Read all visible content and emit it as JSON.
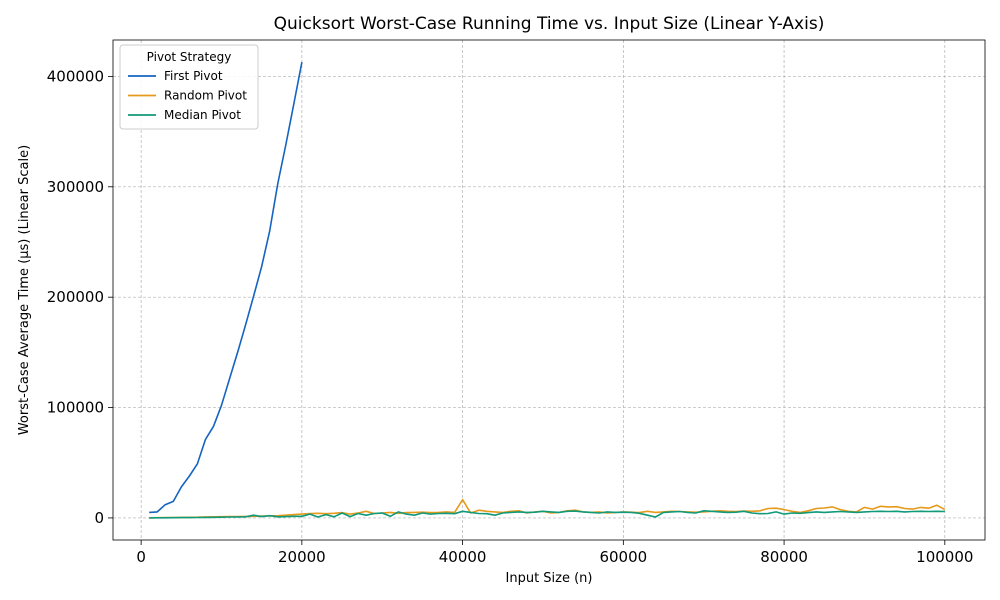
{
  "chart_data": {
    "type": "line",
    "title": "Quicksort Worst-Case Running Time vs. Input Size (Linear Y-Axis)",
    "xlabel": "Input Size (n)",
    "ylabel": "Worst-Case Average Time (μs) (Linear Scale)",
    "xlim": [
      -3500,
      105000
    ],
    "ylim": [
      -20000,
      433000
    ],
    "x_ticks": [
      0,
      20000,
      40000,
      60000,
      80000,
      100000
    ],
    "x_tick_labels": [
      "0",
      "20000",
      "40000",
      "60000",
      "80000",
      "100000"
    ],
    "y_ticks": [
      0,
      100000,
      200000,
      300000,
      400000
    ],
    "y_tick_labels": [
      "0",
      "100000",
      "200000",
      "300000",
      "400000"
    ],
    "grid": true,
    "legend": {
      "title": "Pivot Strategy",
      "position": "top-left"
    },
    "series": [
      {
        "name": "First Pivot",
        "color": "#1464c0",
        "x": [
          1000,
          2000,
          3000,
          4000,
          5000,
          6000,
          7000,
          8000,
          9000,
          10000,
          11000,
          12000,
          13000,
          14000,
          15000,
          16000,
          17000,
          18000,
          19000,
          20000
        ],
        "y": [
          5000,
          5500,
          12000,
          15000,
          28000,
          38000,
          49000,
          71000,
          83000,
          102000,
          126000,
          150000,
          175000,
          201000,
          228000,
          260000,
          303000,
          338000,
          375000,
          413000
        ]
      },
      {
        "name": "Random Pivot",
        "color": "#e59a1c",
        "x": [
          1000,
          2000,
          3000,
          4000,
          5000,
          6000,
          7000,
          8000,
          9000,
          10000,
          11000,
          12000,
          13000,
          14000,
          15000,
          16000,
          17000,
          18000,
          19000,
          20000,
          21000,
          22000,
          23000,
          24000,
          25000,
          26000,
          27000,
          28000,
          29000,
          30000,
          31000,
          32000,
          33000,
          34000,
          35000,
          36000,
          37000,
          38000,
          39000,
          40000,
          41000,
          42000,
          43000,
          44000,
          45000,
          46000,
          47000,
          48000,
          49000,
          50000,
          51000,
          52000,
          53000,
          54000,
          55000,
          56000,
          57000,
          58000,
          59000,
          60000,
          61000,
          62000,
          63000,
          64000,
          65000,
          66000,
          67000,
          68000,
          69000,
          70000,
          71000,
          72000,
          73000,
          74000,
          75000,
          76000,
          77000,
          78000,
          79000,
          80000,
          81000,
          82000,
          83000,
          84000,
          85000,
          86000,
          87000,
          88000,
          89000,
          90000,
          91000,
          92000,
          93000,
          94000,
          95000,
          96000,
          97000,
          98000,
          99000,
          100000
        ],
        "y": [
          100,
          200,
          300,
          400,
          500,
          600,
          700,
          900,
          1000,
          1100,
          1200,
          1300,
          1400,
          1500,
          1700,
          1800,
          2000,
          2500,
          3000,
          3500,
          4000,
          4200,
          3800,
          4200,
          4800,
          3500,
          4500,
          6000,
          4000,
          4500,
          5000,
          4200,
          4800,
          5000,
          5200,
          4800,
          5000,
          5500,
          5000,
          16500,
          4500,
          7000,
          6000,
          5500,
          5000,
          6000,
          6500,
          4500,
          5500,
          6000,
          4500,
          5000,
          6500,
          7000,
          5500,
          5000,
          5500,
          4500,
          5000,
          5500,
          5200,
          4800,
          6000,
          5000,
          5500,
          6000,
          5800,
          5500,
          5200,
          5500,
          6000,
          6500,
          6000,
          5800,
          6200,
          6000,
          6500,
          8500,
          8800,
          7500,
          6000,
          5000,
          6500,
          8500,
          9000,
          10000,
          7500,
          6000,
          5500,
          9500,
          8000,
          10500,
          10000,
          10200,
          8500,
          8000,
          9500,
          8800,
          11500,
          7500
        ]
      },
      {
        "name": "Median Pivot",
        "color": "#109a7a",
        "x": [
          1000,
          2000,
          3000,
          4000,
          5000,
          6000,
          7000,
          8000,
          9000,
          10000,
          11000,
          12000,
          13000,
          14000,
          15000,
          16000,
          17000,
          18000,
          19000,
          20000,
          21000,
          22000,
          23000,
          24000,
          25000,
          26000,
          27000,
          28000,
          29000,
          30000,
          31000,
          32000,
          33000,
          34000,
          35000,
          36000,
          37000,
          38000,
          39000,
          40000,
          41000,
          42000,
          43000,
          44000,
          45000,
          46000,
          47000,
          48000,
          49000,
          50000,
          51000,
          52000,
          53000,
          54000,
          55000,
          56000,
          57000,
          58000,
          59000,
          60000,
          61000,
          62000,
          63000,
          64000,
          65000,
          66000,
          67000,
          68000,
          69000,
          70000,
          71000,
          72000,
          73000,
          74000,
          75000,
          76000,
          77000,
          78000,
          79000,
          80000,
          81000,
          82000,
          83000,
          84000,
          85000,
          86000,
          87000,
          88000,
          89000,
          90000,
          91000,
          92000,
          93000,
          94000,
          95000,
          96000,
          97000,
          98000,
          99000,
          100000
        ],
        "y": [
          50,
          100,
          150,
          200,
          250,
          300,
          400,
          500,
          600,
          700,
          800,
          900,
          1000,
          2500,
          1200,
          2000,
          1000,
          1200,
          1500,
          1500,
          3500,
          800,
          3000,
          1000,
          4500,
          1200,
          4000,
          2500,
          4000,
          4500,
          1500,
          5500,
          3500,
          2500,
          4500,
          3500,
          4000,
          4200,
          3800,
          6000,
          5000,
          4000,
          3800,
          2500,
          4500,
          5000,
          5500,
          5000,
          5200,
          6000,
          5500,
          5000,
          6000,
          6200,
          5500,
          5000,
          4500,
          5500,
          5000,
          5200,
          5000,
          4200,
          2500,
          800,
          5000,
          5500,
          5800,
          5000,
          4500,
          6500,
          6000,
          5500,
          5000,
          5200,
          6000,
          4500,
          3800,
          4000,
          5500,
          3500,
          4500,
          4200,
          4800,
          5500,
          5000,
          5500,
          5800,
          5500,
          5000,
          5500,
          5800,
          6000,
          5800,
          6000,
          5500,
          5800,
          6000,
          5800,
          6000,
          5800
        ]
      }
    ]
  }
}
